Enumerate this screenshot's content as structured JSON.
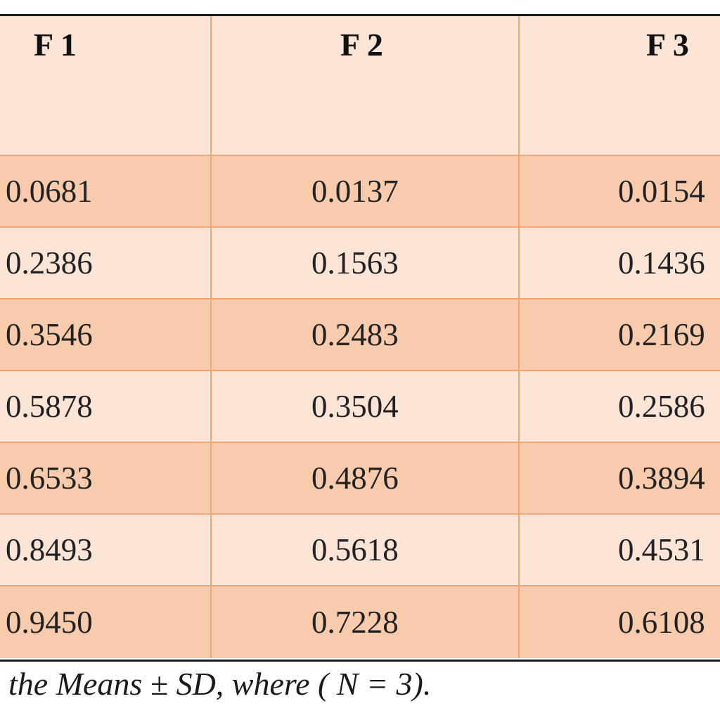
{
  "table": {
    "headers": [
      "F 1",
      "F 2",
      "F 3",
      ""
    ],
    "rows": [
      [
        "0.0681",
        "0.0137",
        "0.0154",
        ""
      ],
      [
        "0.2386",
        "0.1563",
        "0.1436",
        ""
      ],
      [
        "0.3546",
        "0.2483",
        "0.2169",
        ""
      ],
      [
        "0.5878",
        "0.3504",
        "0.2586",
        ""
      ],
      [
        "0.6533",
        "0.4876",
        "0.3894",
        ""
      ],
      [
        "0.8493",
        "0.5618",
        "0.4531",
        ""
      ],
      [
        "0.9450",
        "0.7228",
        "0.6108",
        ""
      ]
    ]
  },
  "footnote": "the Means ± SD, where ( N = 3).",
  "colors": {
    "header_bg": "#fce4d6",
    "row_dark": "#f8cbad",
    "row_light": "#fce4d6",
    "grid": "#f0a572",
    "rule": "#1a1a1a"
  }
}
